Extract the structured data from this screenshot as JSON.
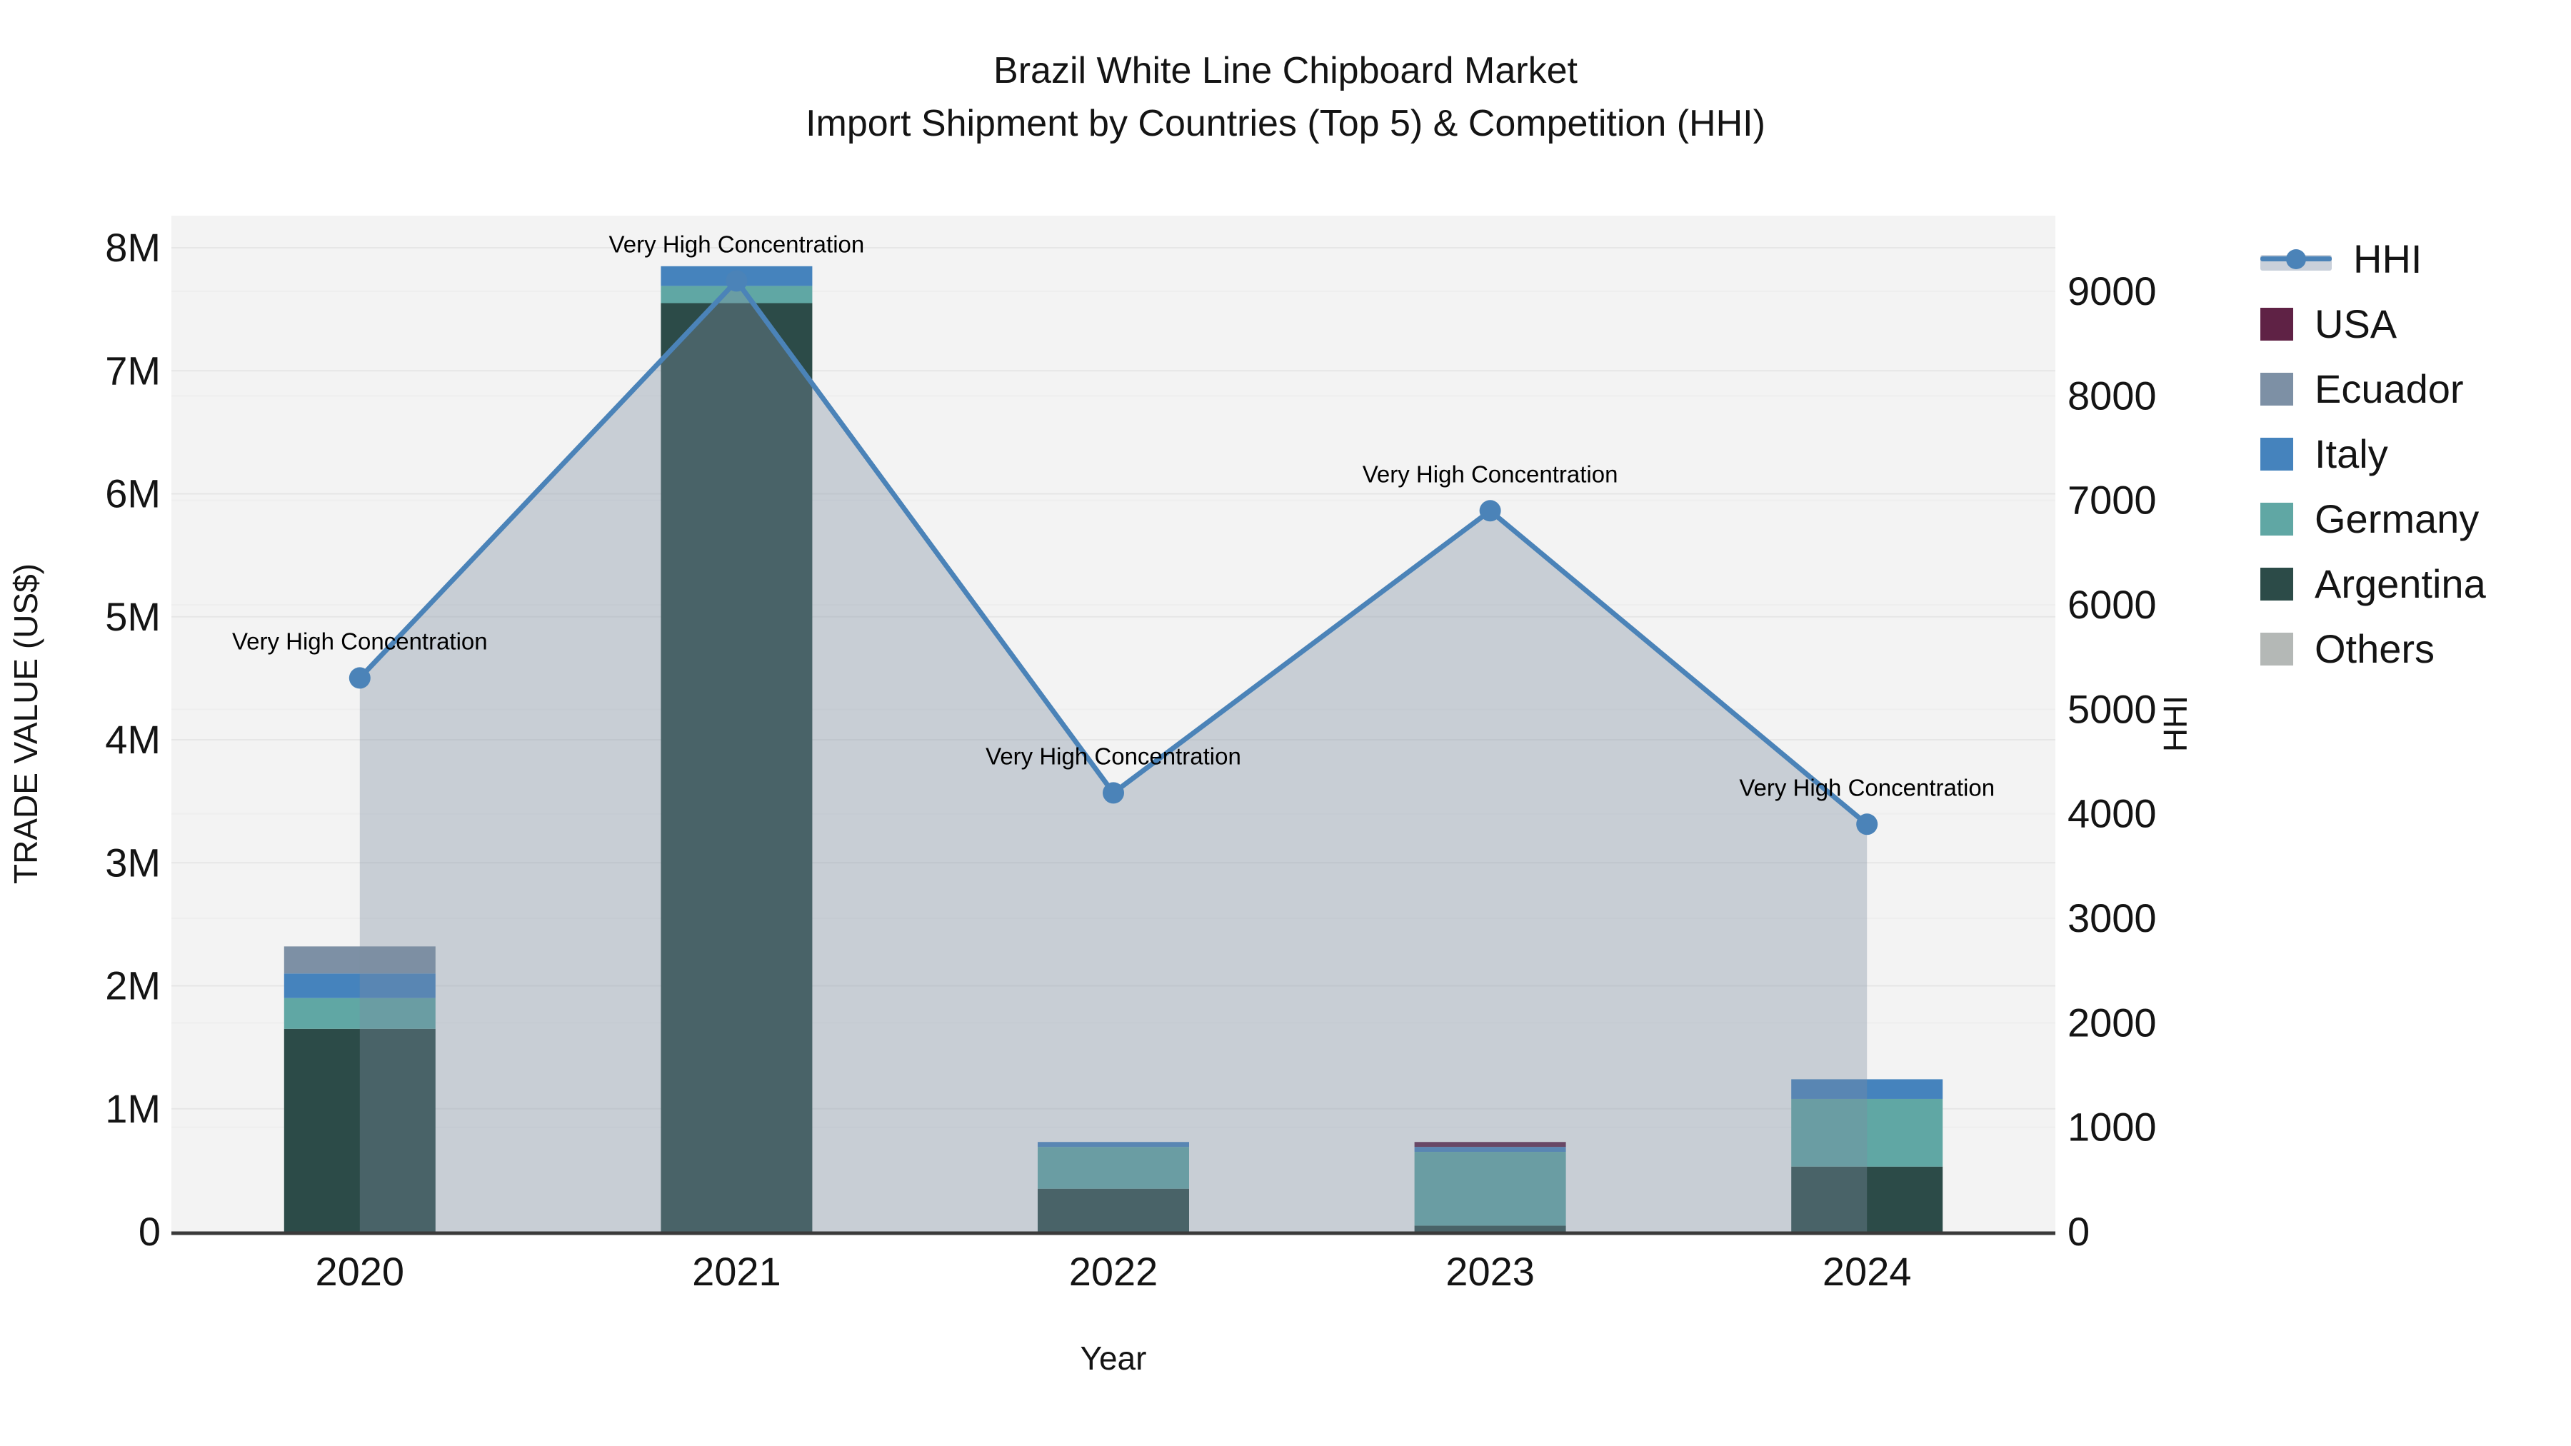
{
  "title": {
    "line1": "Brazil White Line Chipboard Market",
    "line2": "Import Shipment by Countries (Top 5) & Competition (HHI)"
  },
  "axes": {
    "x_label": "Year",
    "y_left_label": "TRADE VALUE (US$)",
    "y_right_label": "HHI",
    "y_left_tick_labels": [
      "0",
      "1M",
      "2M",
      "3M",
      "4M",
      "5M",
      "6M",
      "7M",
      "8M"
    ],
    "y_left_max": 8000000,
    "y_right_tick_labels": [
      "0",
      "1000",
      "2000",
      "3000",
      "4000",
      "5000",
      "6000",
      "7000",
      "8000",
      "9000"
    ],
    "y_right_max": 9000
  },
  "chart_data": {
    "type": "bar",
    "subtype": "stacked-bars-with-line-area",
    "categories": [
      "2020",
      "2021",
      "2022",
      "2023",
      "2024"
    ],
    "value_unit": "US$",
    "series": [
      {
        "name": "USA",
        "color": "#5f2245",
        "values": [
          0,
          0,
          0,
          40000,
          0
        ]
      },
      {
        "name": "Ecuador",
        "color": "#7d90a5",
        "values": [
          220000,
          0,
          0,
          0,
          0
        ]
      },
      {
        "name": "Italy",
        "color": "#4583bd",
        "values": [
          200000,
          160000,
          40000,
          40000,
          160000
        ]
      },
      {
        "name": "Germany",
        "color": "#60a7a4",
        "values": [
          250000,
          140000,
          340000,
          600000,
          550000
        ]
      },
      {
        "name": "Argentina",
        "color": "#2c4b48",
        "values": [
          1650000,
          7550000,
          350000,
          50000,
          530000
        ]
      },
      {
        "name": "Others",
        "color": "#b4b8b6",
        "values": [
          0,
          0,
          0,
          0,
          0
        ]
      }
    ],
    "line": {
      "name": "HHI",
      "color": "#4b83b8",
      "area_fill": "rgba(125,140,160,0.36)",
      "values": [
        5300,
        9100,
        4200,
        6900,
        3900
      ]
    },
    "annotations": [
      {
        "category": "2020",
        "text": "Very High Concentration"
      },
      {
        "category": "2021",
        "text": "Very High Concentration"
      },
      {
        "category": "2022",
        "text": "Very High Concentration"
      },
      {
        "category": "2023",
        "text": "Very High Concentration"
      },
      {
        "category": "2024",
        "text": "Very High Concentration"
      }
    ],
    "ylim_left": [
      0,
      8000000
    ],
    "ylim_right": [
      0,
      9000
    ],
    "grid": true,
    "legend_position": "right"
  },
  "legend": {
    "items": [
      {
        "label": "HHI",
        "type": "line",
        "color": "#4b83b8"
      },
      {
        "label": "USA",
        "type": "swatch",
        "color": "#5f2245"
      },
      {
        "label": "Ecuador",
        "type": "swatch",
        "color": "#7d90a5"
      },
      {
        "label": "Italy",
        "type": "swatch",
        "color": "#4583bd"
      },
      {
        "label": "Germany",
        "type": "swatch",
        "color": "#60a7a4"
      },
      {
        "label": "Argentina",
        "type": "swatch",
        "color": "#2c4b48"
      },
      {
        "label": "Others",
        "type": "swatch",
        "color": "#b4b8b6"
      }
    ]
  }
}
